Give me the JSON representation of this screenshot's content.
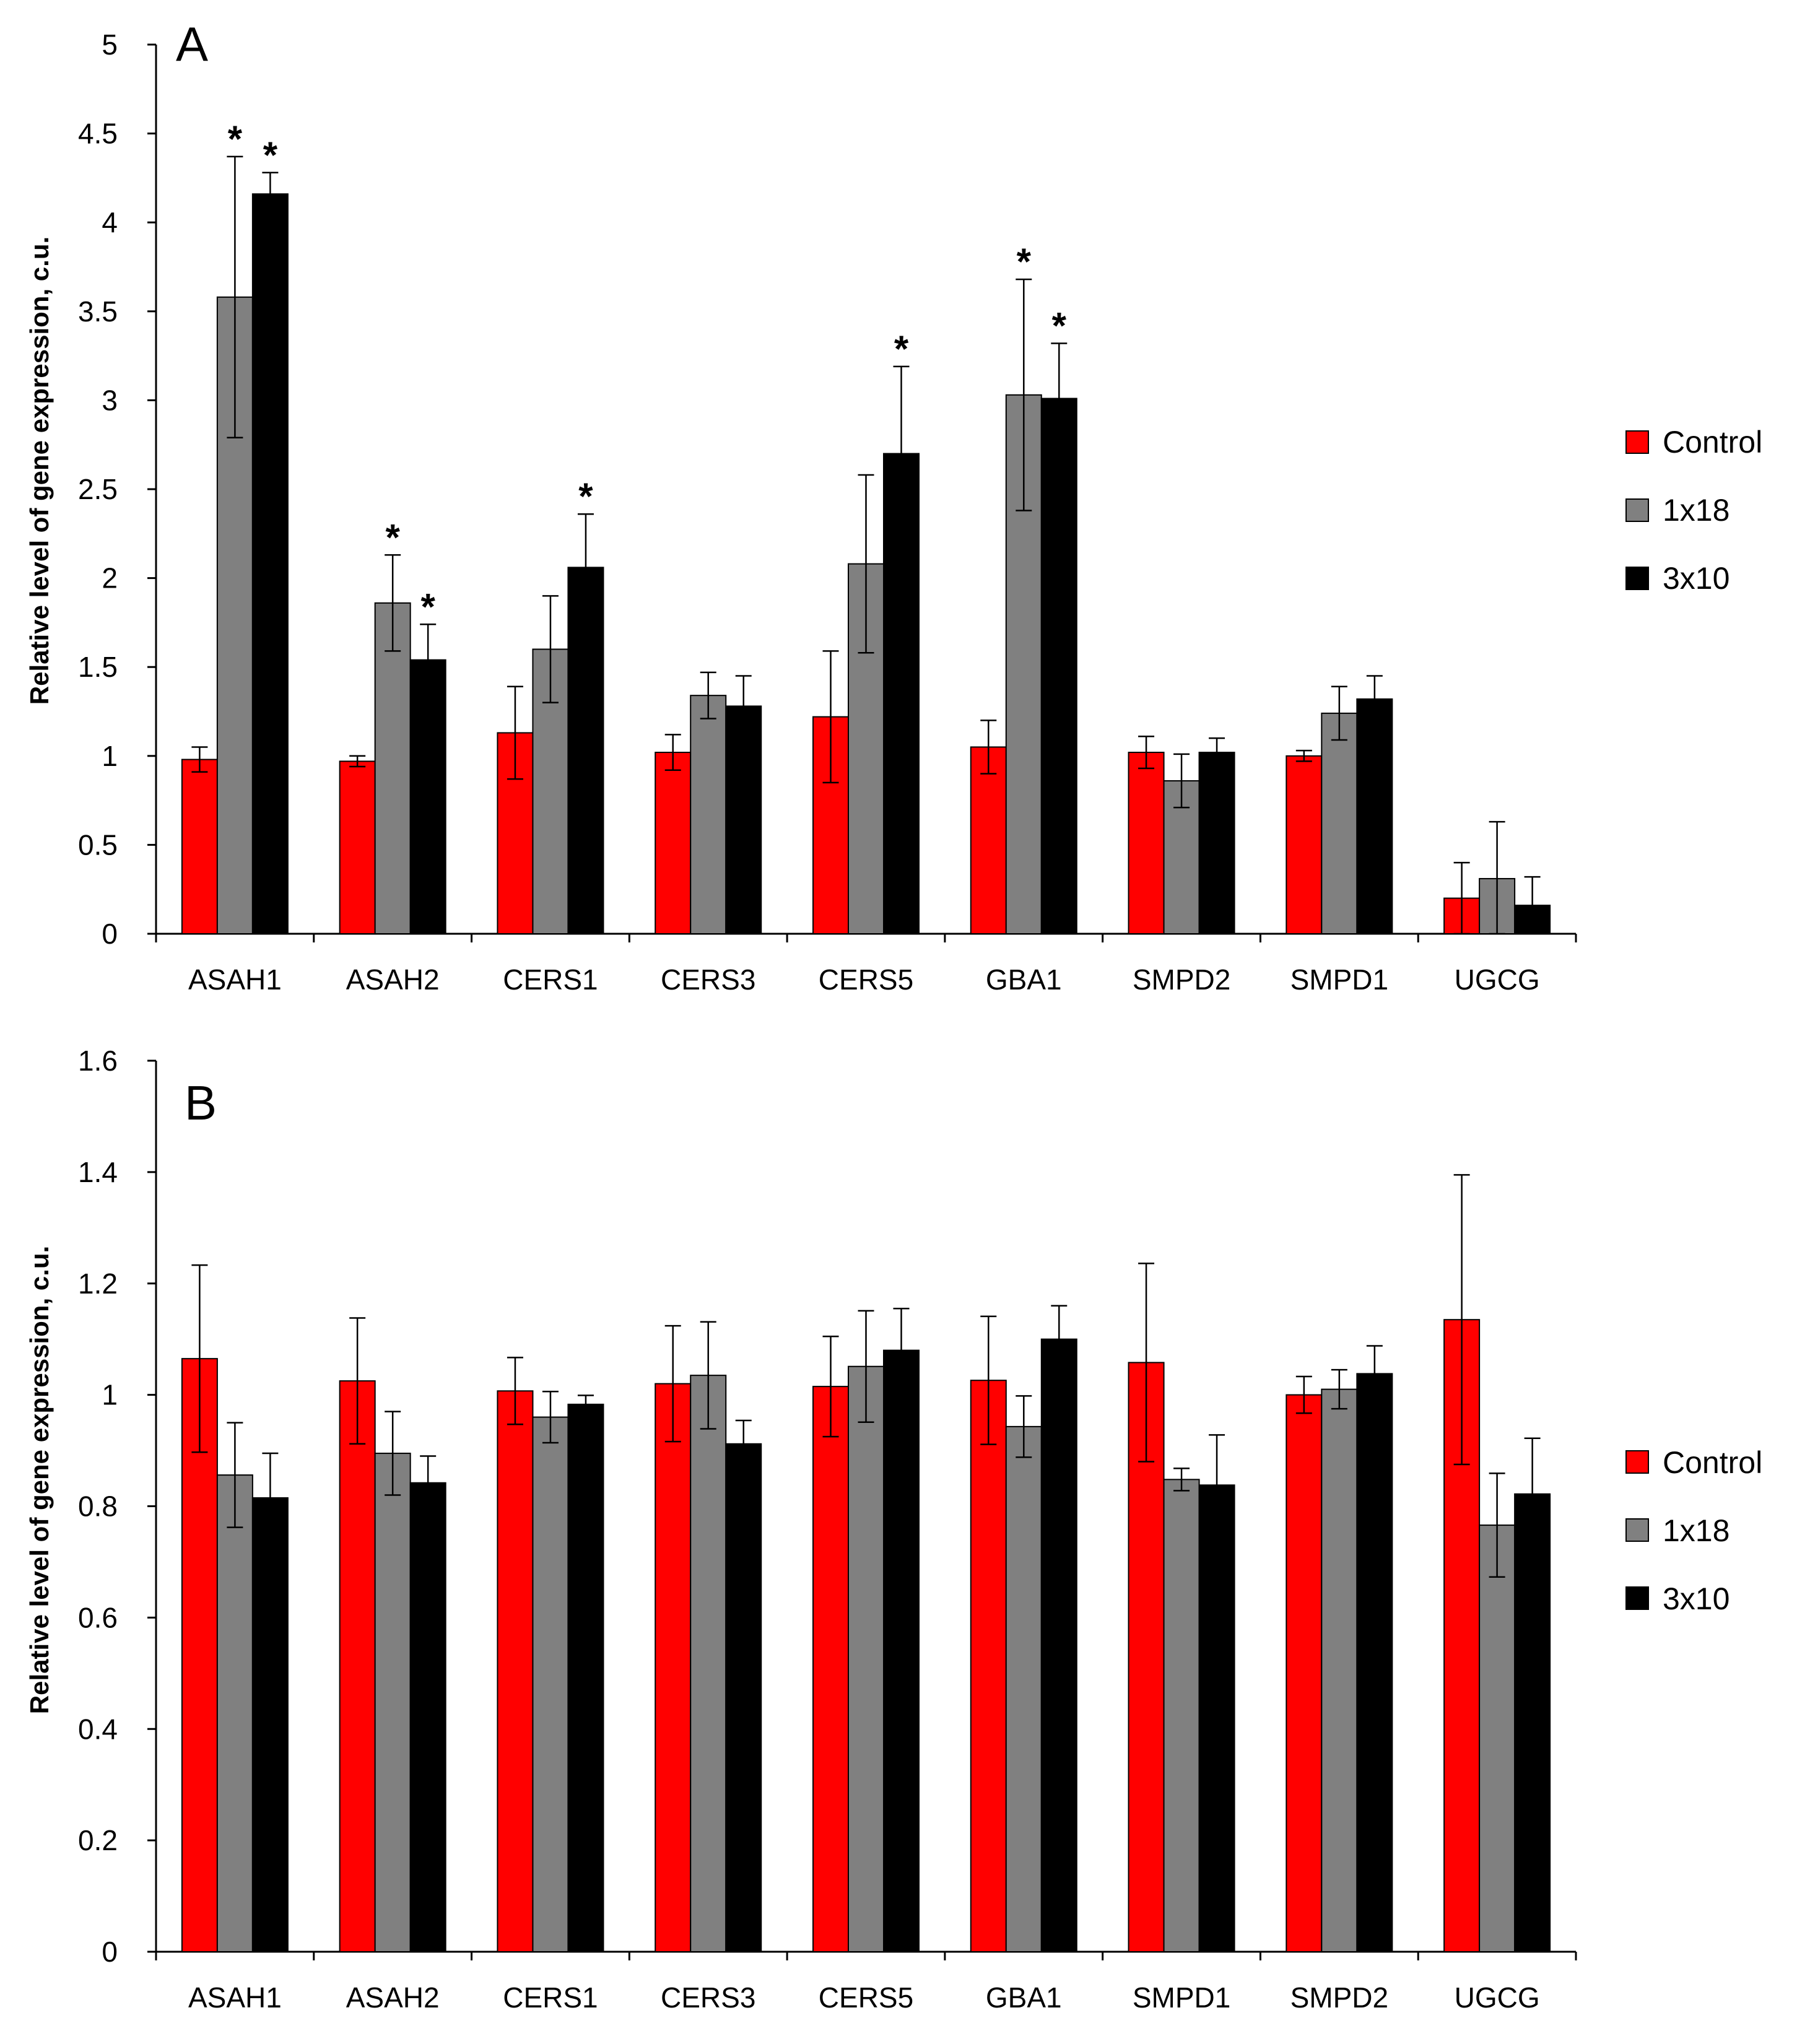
{
  "colors": {
    "Control": "#ff0000",
    "1x18": "#808080",
    "3x10": "#000000"
  },
  "chart_data": [
    {
      "type": "bar",
      "panel": "A",
      "ylabel": "Relative level of gene  expression, c.u.",
      "ylim": [
        0,
        5
      ],
      "yticks": [
        0,
        0.5,
        1,
        1.5,
        2,
        2.5,
        3,
        3.5,
        4,
        4.5,
        5
      ],
      "ytick_labels": [
        "0",
        "0.5",
        "1",
        "1.5",
        "2",
        "2.5",
        "3",
        "3.5",
        "4",
        "4.5",
        "5"
      ],
      "legend_position": "right",
      "categories": [
        "ASAH1",
        "ASAH2",
        "CERS1",
        "CERS3",
        "CERS5",
        "GBA1",
        "SMPD2",
        "SMPD1",
        "UGCG"
      ],
      "series": [
        {
          "name": "Control",
          "values": [
            0.98,
            0.97,
            1.13,
            1.02,
            1.22,
            1.05,
            1.02,
            1.0,
            0.2
          ],
          "errors": [
            0.07,
            0.03,
            0.26,
            0.1,
            0.37,
            0.15,
            0.09,
            0.03,
            0.2
          ],
          "stars": [
            false,
            false,
            false,
            false,
            false,
            false,
            false,
            false,
            false
          ]
        },
        {
          "name": "1x18",
          "values": [
            3.58,
            1.86,
            1.6,
            1.34,
            2.08,
            3.03,
            0.86,
            1.24,
            0.31
          ],
          "errors": [
            0.79,
            0.27,
            0.3,
            0.13,
            0.5,
            0.65,
            0.15,
            0.15,
            0.32
          ],
          "stars": [
            true,
            true,
            false,
            false,
            false,
            true,
            false,
            false,
            false
          ]
        },
        {
          "name": "3x10",
          "values": [
            4.16,
            1.54,
            2.06,
            1.28,
            2.7,
            3.01,
            1.02,
            1.32,
            0.16
          ],
          "errors": [
            0.12,
            0.2,
            0.3,
            0.17,
            0.49,
            0.31,
            0.08,
            0.13,
            0.16
          ],
          "stars": [
            true,
            true,
            true,
            false,
            true,
            true,
            false,
            false,
            false
          ]
        }
      ]
    },
    {
      "type": "bar",
      "panel": "B",
      "ylabel": "Relative level of gene  expression, c.u.",
      "ylim": [
        0,
        1.6
      ],
      "yticks": [
        0,
        0.2,
        0.4,
        0.6,
        0.8,
        1,
        1.2,
        1.4,
        1.6
      ],
      "ytick_labels": [
        "0",
        "0.2",
        "0.4",
        "0.6",
        "0.8",
        "1",
        "1.2",
        "1.4",
        "1.6"
      ],
      "legend_position": "right",
      "categories": [
        "ASAH1",
        "ASAH2",
        "CERS1",
        "CERS3",
        "CERS5",
        "GBA1",
        "SMPD1",
        "SMPD2",
        "UGCG"
      ],
      "series": [
        {
          "name": "Control",
          "values": [
            1.065,
            1.025,
            1.007,
            1.02,
            1.015,
            1.026,
            1.058,
            1.0,
            1.135
          ],
          "errors": [
            0.168,
            0.113,
            0.06,
            0.104,
            0.09,
            0.115,
            0.178,
            0.033,
            0.26
          ],
          "stars": [
            false,
            false,
            false,
            false,
            false,
            false,
            false,
            false,
            false
          ]
        },
        {
          "name": "1x18",
          "values": [
            0.856,
            0.895,
            0.96,
            1.035,
            1.051,
            0.943,
            0.848,
            1.01,
            0.766
          ],
          "errors": [
            0.094,
            0.075,
            0.046,
            0.096,
            0.1,
            0.055,
            0.02,
            0.035,
            0.093
          ],
          "stars": [
            false,
            false,
            false,
            false,
            false,
            false,
            false,
            false,
            false
          ]
        },
        {
          "name": "3x10",
          "values": [
            0.815,
            0.842,
            0.983,
            0.912,
            1.08,
            1.1,
            0.838,
            1.038,
            0.822
          ],
          "errors": [
            0.08,
            0.048,
            0.016,
            0.042,
            0.075,
            0.06,
            0.09,
            0.05,
            0.1
          ],
          "stars": [
            false,
            false,
            false,
            false,
            false,
            false,
            false,
            false,
            false
          ]
        }
      ]
    }
  ],
  "panels": [
    {
      "letter": "A",
      "legend": [
        "Control",
        "1x18",
        "3x10"
      ]
    },
    {
      "letter": "B",
      "legend": [
        "Control",
        "1x18",
        "3x10"
      ]
    }
  ]
}
